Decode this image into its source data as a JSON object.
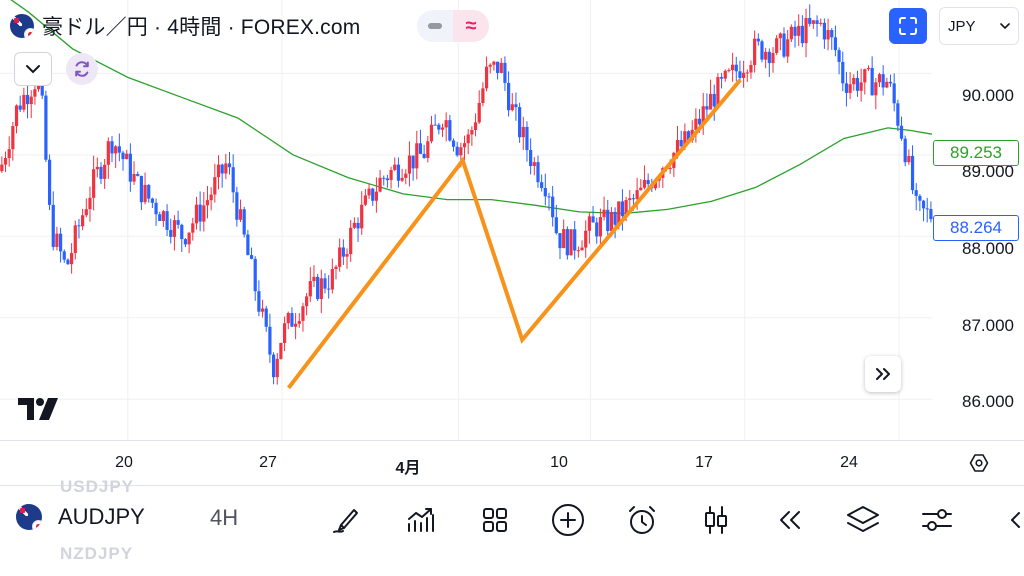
{
  "header": {
    "title": "豪ドル／円 · 4時間 · FOREX.com",
    "badge_a_icon": "minus-icon",
    "badge_b_label": "≈",
    "currency": "JPY"
  },
  "price_axis": {
    "labels": [
      "90.000",
      "89.000",
      "88.000",
      "87.000",
      "86.000"
    ],
    "ma_price": "89.253",
    "last_price": "88.264"
  },
  "time_axis": {
    "labels": [
      {
        "text": "20",
        "bold": false
      },
      {
        "text": "27",
        "bold": false
      },
      {
        "text": "4月",
        "bold": true
      },
      {
        "text": "10",
        "bold": false
      },
      {
        "text": "17",
        "bold": false
      },
      {
        "text": "24",
        "bold": false
      }
    ]
  },
  "bottom_bar": {
    "ghost_above": "USDJPY",
    "ghost_below": "NZDJPY",
    "symbol": "AUDJPY",
    "timeframe": "4H",
    "tools": [
      "brush-icon",
      "indicators-icon",
      "grid-icon",
      "add-icon",
      "alarm-icon",
      "candles-icon",
      "replay-icon",
      "layers-icon",
      "settings-icon",
      "chevron-left-icon"
    ]
  },
  "colors": {
    "up": "#ef3340",
    "down": "#2962ff",
    "ma": "#2ca02c",
    "pattern": "#f7931a",
    "grid": "#eef0f3",
    "accent": "#2962ff"
  },
  "chart_data": {
    "type": "candlestick",
    "symbol": "AUDJPY",
    "timeframe": "4H",
    "currency": "JPY",
    "ylim": [
      85.5,
      90.9
    ],
    "yticks": [
      86.0,
      87.0,
      88.0,
      89.0,
      90.0
    ],
    "grid": true,
    "xlim_days": [
      14.2,
      56.5
    ],
    "x_ticks": [
      {
        "label": "20",
        "day": 20
      },
      {
        "label": "27",
        "day": 27
      },
      {
        "label": "4月",
        "day": 35
      },
      {
        "label": "10",
        "day": 41
      },
      {
        "label": "17",
        "day": 48
      },
      {
        "label": "24",
        "day": 55
      }
    ],
    "price_path": [
      [
        14.2,
        88.8
      ],
      [
        15.0,
        89.6
      ],
      [
        16.0,
        90.0
      ],
      [
        16.5,
        88.1
      ],
      [
        17.2,
        87.6
      ],
      [
        18.2,
        88.5
      ],
      [
        19.3,
        89.2
      ],
      [
        20.5,
        88.6
      ],
      [
        21.5,
        88.3
      ],
      [
        22.5,
        88.0
      ],
      [
        23.5,
        88.4
      ],
      [
        24.5,
        88.9
      ],
      [
        25.5,
        87.7
      ],
      [
        26.6,
        86.4
      ],
      [
        27.0,
        86.8
      ],
      [
        28.2,
        87.3
      ],
      [
        29.3,
        87.5
      ],
      [
        30.4,
        88.2
      ],
      [
        31.5,
        88.7
      ],
      [
        32.5,
        88.9
      ],
      [
        33.4,
        89.0
      ],
      [
        34.3,
        89.5
      ],
      [
        35.0,
        89.1
      ],
      [
        35.5,
        89.2
      ],
      [
        35.9,
        89.6
      ],
      [
        36.3,
        90.0
      ],
      [
        36.9,
        90.1
      ],
      [
        37.5,
        89.5
      ],
      [
        38.4,
        88.9
      ],
      [
        39.1,
        88.6
      ],
      [
        39.5,
        88.0
      ],
      [
        40.2,
        87.9
      ],
      [
        41.0,
        88.1
      ],
      [
        42.0,
        88.2
      ],
      [
        43.2,
        88.5
      ],
      [
        44.3,
        88.9
      ],
      [
        45.5,
        89.2
      ],
      [
        46.5,
        89.7
      ],
      [
        47.5,
        90.0
      ],
      [
        48.5,
        90.3
      ],
      [
        49.5,
        90.3
      ],
      [
        50.5,
        90.5
      ],
      [
        51.5,
        90.6
      ],
      [
        52.1,
        90.3
      ],
      [
        52.5,
        89.9
      ],
      [
        53.5,
        89.9
      ],
      [
        54.5,
        89.9
      ],
      [
        55.2,
        89.2
      ],
      [
        55.8,
        88.3
      ],
      [
        56.5,
        88.26
      ]
    ],
    "series": [
      {
        "name": "",
        "type": "line",
        "points": [
          [
            14.2,
            91.0
          ],
          [
            15.5,
            90.75
          ],
          [
            17.5,
            90.3
          ],
          [
            20.0,
            89.95
          ],
          [
            22.5,
            89.7
          ],
          [
            25.0,
            89.45
          ],
          [
            27.5,
            89.0
          ],
          [
            30.0,
            88.72
          ],
          [
            32.5,
            88.52
          ],
          [
            34.5,
            88.45
          ],
          [
            36.5,
            88.45
          ],
          [
            38.5,
            88.38
          ],
          [
            40.5,
            88.3
          ],
          [
            42.5,
            88.28
          ],
          [
            44.5,
            88.33
          ],
          [
            46.5,
            88.43
          ],
          [
            48.5,
            88.6
          ],
          [
            50.5,
            88.88
          ],
          [
            52.5,
            89.2
          ],
          [
            54.5,
            89.33
          ],
          [
            55.5,
            89.3
          ],
          [
            56.5,
            89.253
          ]
        ]
      },
      {
        "name": "",
        "type": "line",
        "points": [
          [
            27.3,
            86.14
          ],
          [
            35.2,
            88.93
          ],
          [
            37.9,
            86.73
          ],
          [
            47.8,
            89.92
          ]
        ]
      }
    ],
    "last_price": 88.264,
    "ma_last": 89.253
  }
}
